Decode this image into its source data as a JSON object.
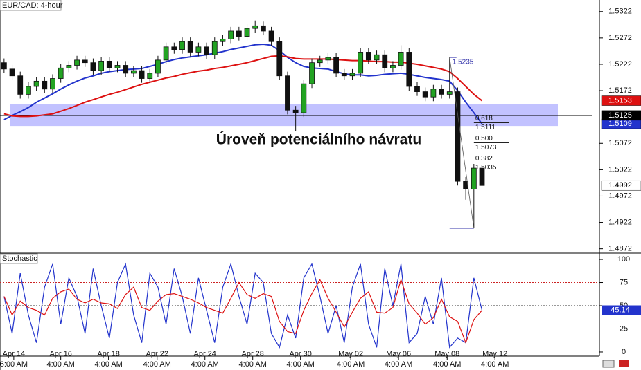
{
  "chart_data": [
    {
      "type": "candlestick",
      "title": "EUR/CAD: 4-hour",
      "up_color": "#22a322",
      "down_color": "#111111",
      "open": [
        1.5225,
        1.5213,
        1.52,
        1.5165,
        1.518,
        1.519,
        1.5175,
        1.5195,
        1.5215,
        1.522,
        1.523,
        1.5225,
        1.521,
        1.5228,
        1.5215,
        1.522,
        1.5205,
        1.521,
        1.5195,
        1.5205,
        1.523,
        1.5255,
        1.525,
        1.5265,
        1.5245,
        1.5255,
        1.524,
        1.5265,
        1.527,
        1.5285,
        1.5275,
        1.529,
        1.5295,
        1.5285,
        1.5265,
        1.52,
        1.5135,
        1.513,
        1.5185,
        1.5225,
        1.523,
        1.5235,
        1.5205,
        1.52,
        1.5205,
        1.5245,
        1.523,
        1.524,
        1.5215,
        1.522,
        1.5245,
        1.518,
        1.517,
        1.516,
        1.5175,
        1.5165,
        1.517,
        1.5,
        1.4985,
        1.5025
      ],
      "high": [
        1.5233,
        1.5221,
        1.5208,
        1.5188,
        1.5198,
        1.5198,
        1.5203,
        1.5223,
        1.5228,
        1.5238,
        1.5238,
        1.5233,
        1.5236,
        1.5236,
        1.5228,
        1.5228,
        1.5218,
        1.5218,
        1.5213,
        1.5238,
        1.5263,
        1.5263,
        1.5273,
        1.5273,
        1.5263,
        1.5263,
        1.5273,
        1.5278,
        1.5293,
        1.5293,
        1.5298,
        1.5305,
        1.5303,
        1.5293,
        1.5273,
        1.5208,
        1.5143,
        1.5193,
        1.5233,
        1.5238,
        1.5243,
        1.5243,
        1.5213,
        1.5213,
        1.5253,
        1.5253,
        1.5248,
        1.5248,
        1.5228,
        1.5258,
        1.5253,
        1.5188,
        1.5178,
        1.5183,
        1.5183,
        1.5235,
        1.5178,
        1.5008,
        1.5033,
        1.5033
      ],
      "low": [
        1.5205,
        1.5192,
        1.5157,
        1.5157,
        1.5172,
        1.5167,
        1.5167,
        1.5187,
        1.5207,
        1.5212,
        1.5217,
        1.5202,
        1.5202,
        1.5207,
        1.5207,
        1.5197,
        1.5197,
        1.5187,
        1.5187,
        1.5197,
        1.5222,
        1.5242,
        1.5242,
        1.5237,
        1.5237,
        1.5232,
        1.5232,
        1.5257,
        1.5262,
        1.5267,
        1.5267,
        1.5282,
        1.5277,
        1.5257,
        1.5192,
        1.5127,
        1.5095,
        1.5122,
        1.5177,
        1.5217,
        1.5222,
        1.5197,
        1.5192,
        1.5192,
        1.5197,
        1.5222,
        1.5222,
        1.5207,
        1.5207,
        1.5212,
        1.5172,
        1.5162,
        1.5152,
        1.5152,
        1.5157,
        1.5157,
        1.4992,
        1.4965,
        1.4911,
        1.4984
      ],
      "close": [
        1.5213,
        1.52,
        1.5165,
        1.518,
        1.519,
        1.5175,
        1.5195,
        1.5215,
        1.522,
        1.523,
        1.5225,
        1.521,
        1.5228,
        1.5215,
        1.522,
        1.5205,
        1.521,
        1.5195,
        1.5205,
        1.523,
        1.5255,
        1.525,
        1.5265,
        1.5245,
        1.5255,
        1.524,
        1.5265,
        1.527,
        1.5285,
        1.5275,
        1.529,
        1.5295,
        1.5285,
        1.5265,
        1.52,
        1.5135,
        1.513,
        1.5185,
        1.5225,
        1.523,
        1.5235,
        1.5205,
        1.52,
        1.5205,
        1.5245,
        1.523,
        1.524,
        1.5215,
        1.522,
        1.5245,
        1.518,
        1.517,
        1.516,
        1.5175,
        1.5165,
        1.517,
        1.5,
        1.4985,
        1.5025,
        1.4992
      ],
      "moving_averages": [
        {
          "color": "#2233cc",
          "values": [
            1.5117,
            1.5125,
            1.5132,
            1.514,
            1.515,
            1.5158,
            1.5166,
            1.5175,
            1.5183,
            1.519,
            1.5196,
            1.52,
            1.5205,
            1.5208,
            1.521,
            1.5212,
            1.5213,
            1.5214,
            1.5218,
            1.5222,
            1.5227,
            1.5231,
            1.5234,
            1.5236,
            1.5238,
            1.524,
            1.5243,
            1.5246,
            1.525,
            1.5253,
            1.5256,
            1.5259,
            1.526,
            1.5258,
            1.5248,
            1.5235,
            1.5225,
            1.5218,
            1.5215,
            1.5214,
            1.5213,
            1.5208,
            1.5204,
            1.5202,
            1.5202,
            1.52,
            1.5201,
            1.5203,
            1.5204,
            1.5205,
            1.5203,
            1.52,
            1.5197,
            1.5195,
            1.5193,
            1.519,
            1.5172,
            1.515,
            1.513,
            1.5109
          ]
        },
        {
          "color": "#dd1111",
          "values": [
            1.5128,
            1.5124,
            1.5123,
            1.5123,
            1.5124,
            1.5126,
            1.5128,
            1.5133,
            1.5138,
            1.5144,
            1.515,
            1.5155,
            1.516,
            1.5165,
            1.5169,
            1.5174,
            1.5179,
            1.5184,
            1.5188,
            1.5192,
            1.5196,
            1.5199,
            1.5203,
            1.5206,
            1.5209,
            1.5211,
            1.5214,
            1.5216,
            1.5219,
            1.5222,
            1.5225,
            1.5229,
            1.5233,
            1.5237,
            1.5238,
            1.5236,
            1.5233,
            1.5232,
            1.5232,
            1.5232,
            1.5232,
            1.5231,
            1.523,
            1.5229,
            1.5229,
            1.5228,
            1.5227,
            1.5227,
            1.5226,
            1.5226,
            1.5224,
            1.5222,
            1.5219,
            1.5216,
            1.5213,
            1.5208,
            1.5195,
            1.518,
            1.5165,
            1.5153
          ]
        }
      ],
      "hline": 1.5125,
      "zone": [
        1.5105,
        1.5147
      ],
      "annotation": "Úroveň potenciálního návratu",
      "fib": {
        "high": 1.5235,
        "low": 1.4911,
        "levels": [
          {
            "ratio": 0.618,
            "price": 1.5111
          },
          {
            "ratio": {
              "value": 0.5,
              "label": "0.500"
            },
            "price": 1.5073
          },
          {
            "ratio": 0.382,
            "price": 1.5035
          }
        ]
      },
      "xlim": [
        -0.5,
        73.5
      ],
      "xticks": [
        {
          "value": 1.2,
          "label": "Apr 14",
          "time": "6:00 AM"
        },
        {
          "value": 7.0,
          "label": "Apr 16",
          "time": "4:00 AM"
        },
        {
          "value": 12.9,
          "label": "Apr 18",
          "time": "4:00 AM"
        },
        {
          "value": 18.9,
          "label": "Apr 22",
          "time": "4:00 AM"
        },
        {
          "value": 24.8,
          "label": "Apr 24",
          "time": "4:00 AM"
        },
        {
          "value": 30.7,
          "label": "Apr 28",
          "time": "4:00 AM"
        },
        {
          "value": 36.6,
          "label": "Apr 30",
          "time": "4:00 AM"
        },
        {
          "value": 42.8,
          "label": "May 02",
          "time": "4:00 AM"
        },
        {
          "value": 48.7,
          "label": "May 06",
          "time": "4:00 AM"
        },
        {
          "value": 54.7,
          "label": "May 08",
          "time": "4:00 AM"
        },
        {
          "value": 60.6,
          "label": "May 12",
          "time": "4:00 AM"
        }
      ],
      "ylim": [
        1.4865,
        1.5344
      ],
      "yticks": [
        1.4872,
        1.4922,
        1.4972,
        1.5022,
        1.5072,
        1.5172,
        1.5222,
        1.5272,
        1.5322
      ]
    },
    {
      "type": "line",
      "title": "Stochastic",
      "series": [
        {
          "color": "#2233cc",
          "values": [
            60,
            20,
            85,
            40,
            10,
            70,
            95,
            30,
            80,
            60,
            20,
            90,
            50,
            15,
            75,
            95,
            40,
            10,
            85,
            70,
            30,
            90,
            60,
            20,
            80,
            45,
            10,
            70,
            95,
            60,
            30,
            85,
            75,
            20,
            5,
            40,
            15,
            80,
            95,
            60,
            20,
            50,
            10,
            70,
            95,
            30,
            5,
            90,
            50,
            95,
            10,
            20,
            60,
            30,
            80,
            5,
            15,
            10,
            80,
            45.14
          ]
        },
        {
          "color": "#dd1111",
          "values": [
            60,
            40,
            55,
            48,
            45,
            40,
            58,
            65,
            68,
            57,
            53,
            57,
            53,
            52,
            47,
            62,
            70,
            48,
            45,
            55,
            62,
            63,
            60,
            57,
            53,
            48,
            45,
            42,
            58,
            75,
            62,
            58,
            63,
            60,
            33,
            22,
            20,
            45,
            63,
            78,
            58,
            43,
            27,
            43,
            58,
            65,
            43,
            42,
            48,
            78,
            52,
            42,
            30,
            37,
            57,
            38,
            33,
            10,
            35,
            45
          ]
        }
      ],
      "current_value": 45.14,
      "ylim": [
        -4.5,
        106
      ],
      "yticks": [
        0,
        25,
        50,
        75,
        100
      ],
      "levels": [
        75,
        50,
        25
      ],
      "level_colors": [
        "#cc2222",
        "#333333",
        "#cc2222"
      ]
    }
  ]
}
